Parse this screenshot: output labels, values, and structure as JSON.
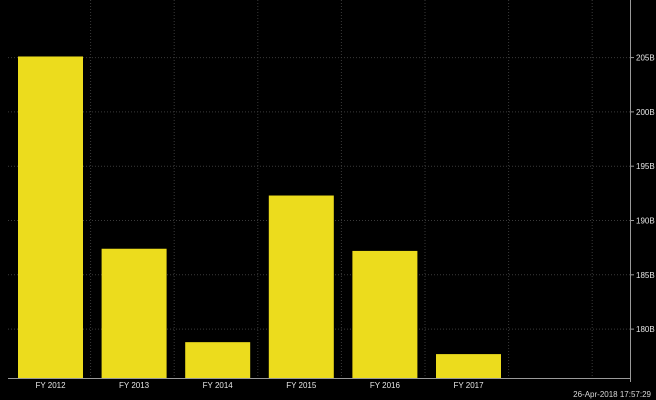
{
  "chart_data": {
    "type": "bar",
    "categories": [
      "FY 2012",
      "FY 2013",
      "FY 2014",
      "FY 2015",
      "FY 2016",
      "FY 2017"
    ],
    "series": [
      {
        "values": [
          205.1,
          187.4,
          178.8,
          192.3,
          187.2,
          177.7
        ]
      }
    ],
    "ylim": [
      175.5,
      210.3
    ],
    "yticks": [
      180,
      185,
      190,
      195,
      200,
      205
    ],
    "ytick_labels": [
      "180B",
      "185B",
      "190B",
      "195B",
      "200B",
      "205B"
    ],
    "ytick_position": "right",
    "grid": true,
    "legend": "none",
    "colors": {
      "background": "#000000",
      "bar": "#ecdc1d",
      "grid": "#3a3a3a",
      "axis": "#9a9a9a",
      "text": "#e6e6e6"
    }
  },
  "footer": {
    "timestamp": "26-Apr-2018 17:57:29"
  }
}
